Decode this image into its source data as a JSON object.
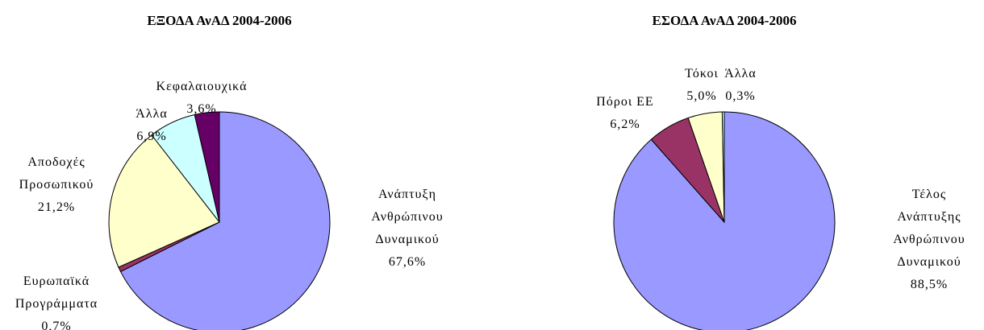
{
  "chart_data": [
    {
      "type": "pie",
      "title": "ΕΞΟΔΑ ΑνΑΔ 2004-2006",
      "categories": [
        "Ανάπτυξη\nΑνθρώπινου\nΔυναμικού",
        "Ευρωπαϊκά\nΠρογράμματα",
        "Αποδοχές\nΠροσωπικού",
        "Άλλα",
        "Κεφαλαιουχικά"
      ],
      "values": [
        67.6,
        0.7,
        21.2,
        6.9,
        3.6
      ],
      "value_labels": [
        "67,6%",
        "0,7%",
        "21,2%",
        "6,9%",
        "3,6%"
      ],
      "colors": [
        "#9999ff",
        "#993366",
        "#ffffcc",
        "#ccffff",
        "#660066"
      ]
    },
    {
      "type": "pie",
      "title": "ΕΣΟΔΑ ΑνΑΔ 2004-2006",
      "categories": [
        "Τέλος Ανάπτυξης\nΑνθρώπινου\nΔυναμικού",
        "Πόροι ΕΕ",
        "Τόκοι",
        "Άλλα"
      ],
      "values": [
        88.5,
        6.2,
        5.0,
        0.3
      ],
      "value_labels": [
        "88,5%",
        "6,2%",
        "5,0%",
        "0,3%"
      ],
      "colors": [
        "#9999ff",
        "#993366",
        "#ffffcc",
        "#ccffff"
      ]
    }
  ]
}
